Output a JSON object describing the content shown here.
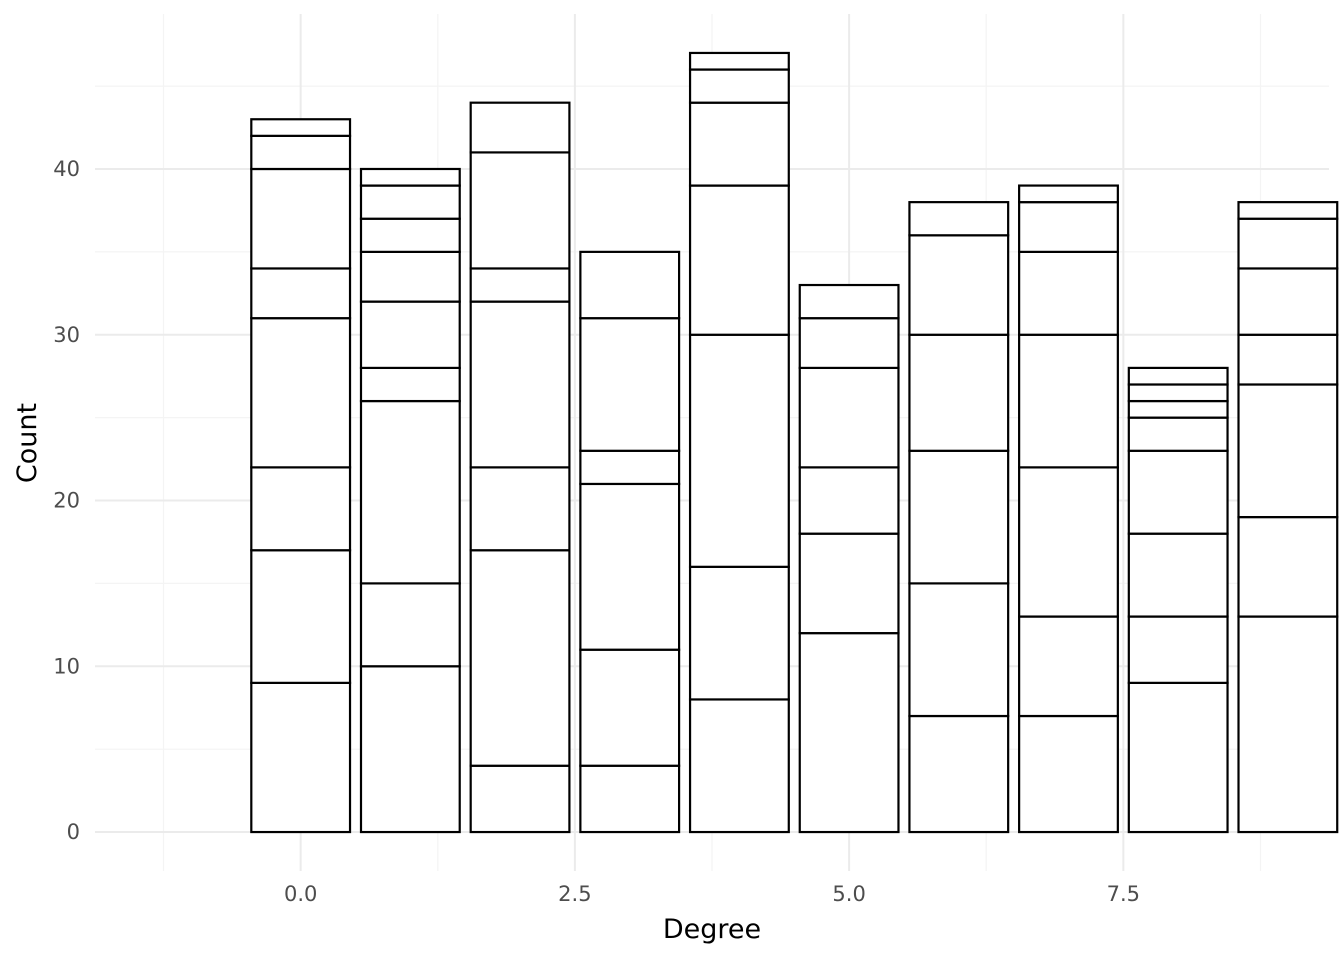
{
  "chart_data": {
    "type": "bar",
    "stacked": true,
    "xlabel": "Degree",
    "ylabel": "Count",
    "xlim": [
      -1.875,
      9.375
    ],
    "ylim": [
      -2.35,
      49.35
    ],
    "x_ticks": [
      0.0,
      2.5,
      5.0,
      7.5
    ],
    "x_tick_labels": [
      "0.0",
      "2.5",
      "5.0",
      "7.5"
    ],
    "y_ticks": [
      0,
      10,
      20,
      30,
      40
    ],
    "y_tick_labels": [
      "0",
      "10",
      "20",
      "30",
      "40"
    ],
    "bar_width": 0.9,
    "grid": true,
    "legend": "none",
    "fill_color": "#ffffff",
    "stroke_color": "#000000",
    "bars": [
      {
        "x": 0,
        "total": 43,
        "stack_boundaries": [
          9,
          17,
          22,
          31,
          34,
          40,
          42,
          43
        ]
      },
      {
        "x": 1,
        "total": 40,
        "stack_boundaries": [
          10,
          15,
          26,
          28,
          32,
          35,
          37,
          39,
          40
        ]
      },
      {
        "x": 2,
        "total": 44,
        "stack_boundaries": [
          4,
          17,
          22,
          32,
          34,
          41,
          44
        ]
      },
      {
        "x": 3,
        "total": 35,
        "stack_boundaries": [
          4,
          11,
          21,
          23,
          31,
          35
        ]
      },
      {
        "x": 4,
        "total": 47,
        "stack_boundaries": [
          8,
          16,
          30,
          39,
          44,
          46,
          47
        ]
      },
      {
        "x": 5,
        "total": 33,
        "stack_boundaries": [
          12,
          18,
          22,
          28,
          31,
          33
        ]
      },
      {
        "x": 6,
        "total": 38,
        "stack_boundaries": [
          7,
          15,
          23,
          30,
          36,
          38
        ]
      },
      {
        "x": 7,
        "total": 39,
        "stack_boundaries": [
          7,
          13,
          22,
          30,
          35,
          38,
          39
        ]
      },
      {
        "x": 8,
        "total": 28,
        "stack_boundaries": [
          9,
          13,
          18,
          23,
          25,
          26,
          27,
          28
        ]
      },
      {
        "x": 9,
        "total": 38,
        "stack_boundaries": [
          13,
          19,
          27,
          30,
          34,
          37,
          38
        ]
      }
    ]
  }
}
